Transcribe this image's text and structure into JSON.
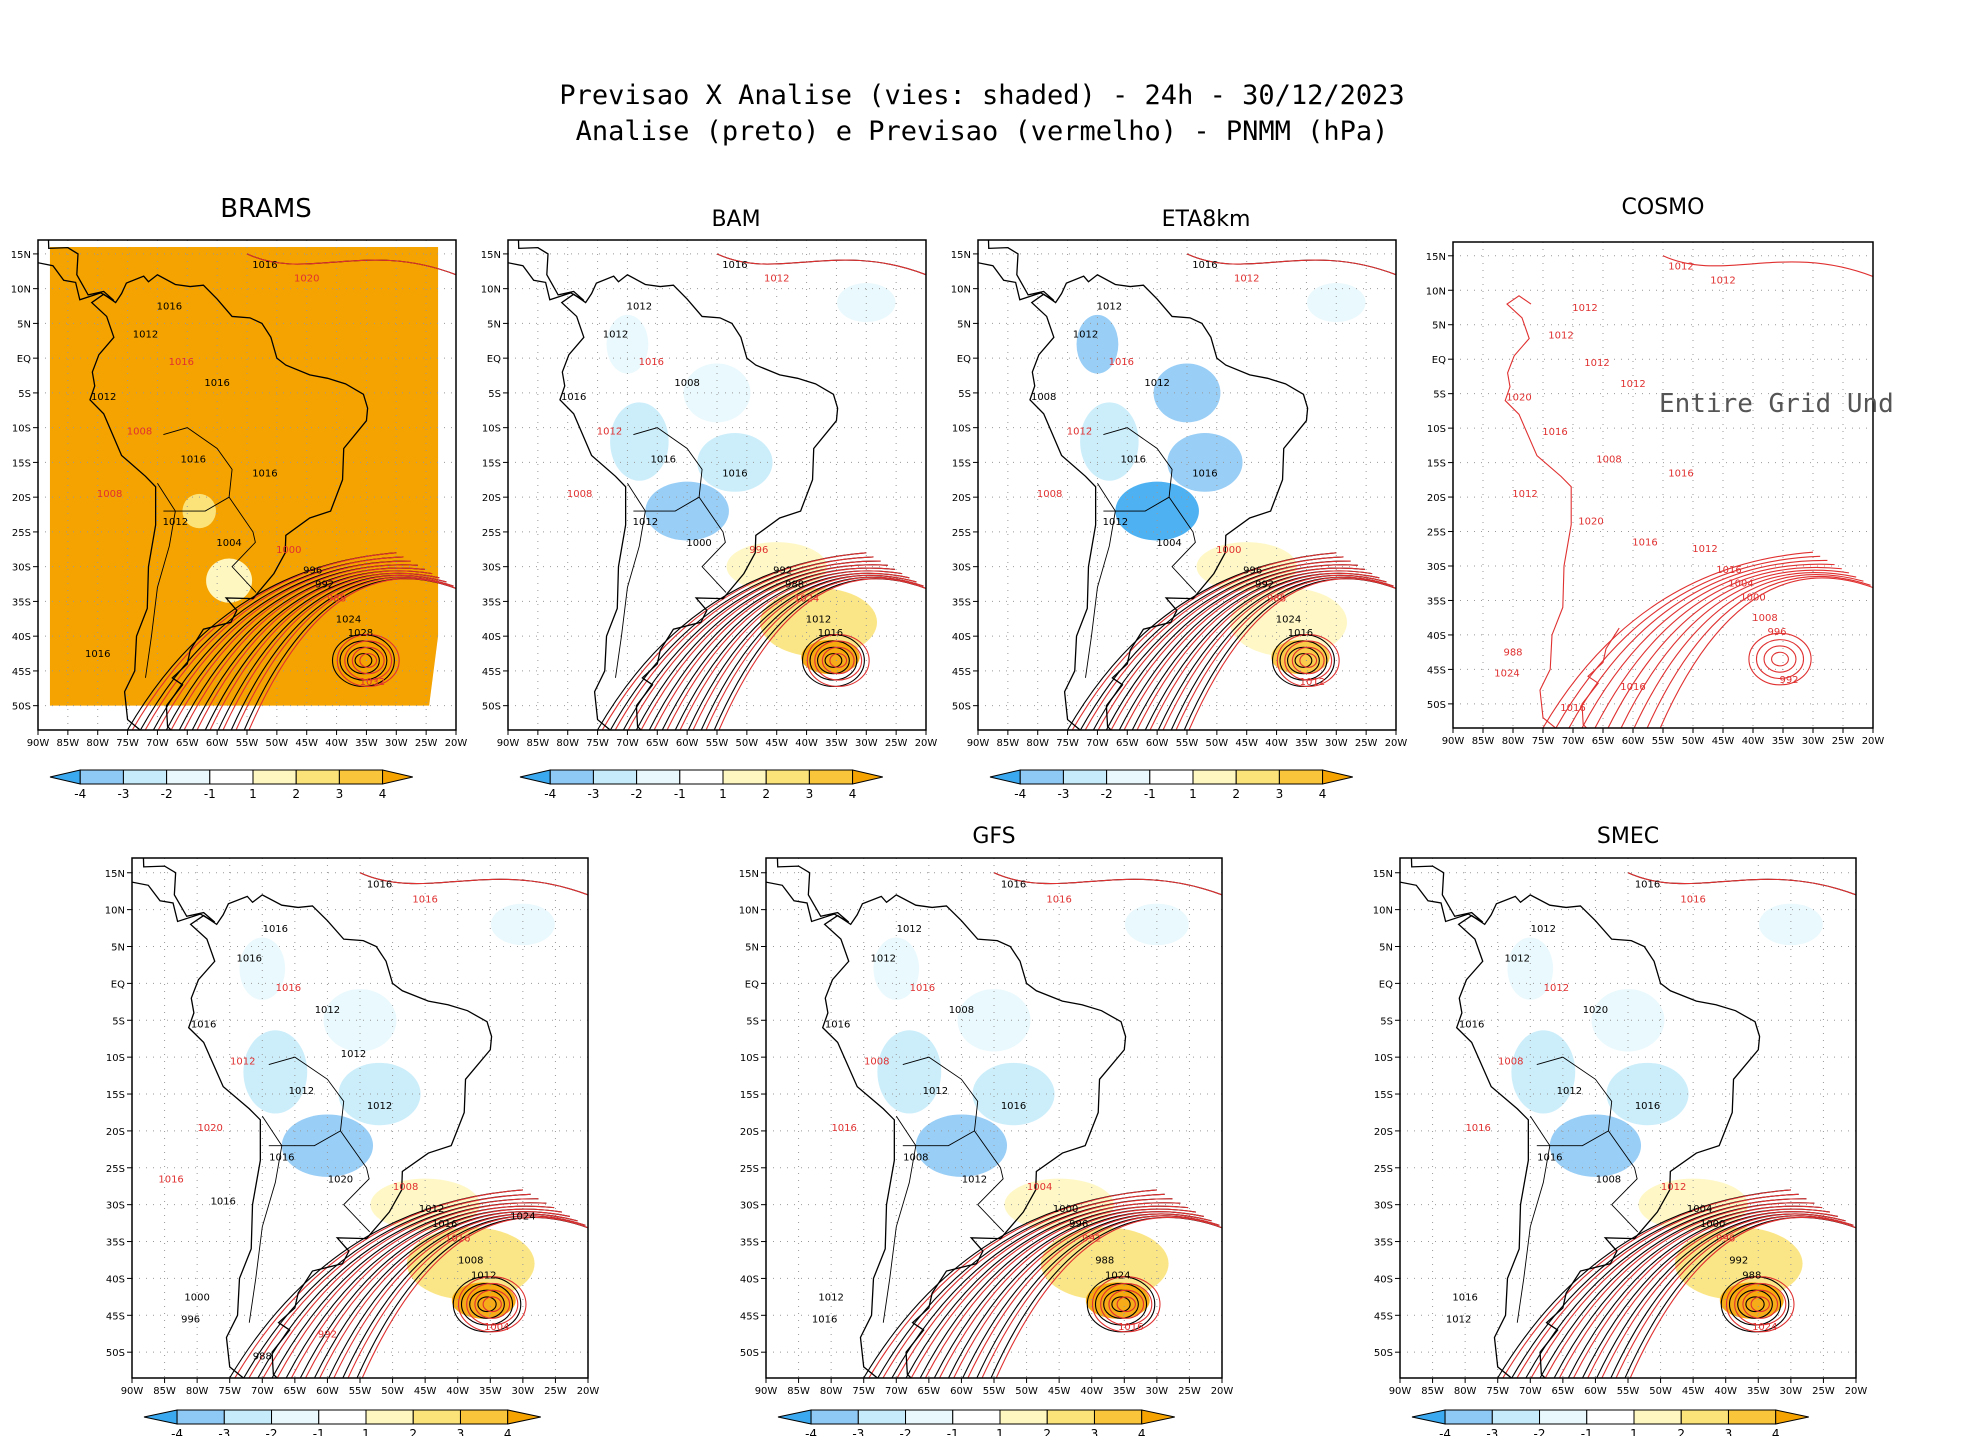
{
  "title_line1": "Previsao X Analise (vies: shaded) - 24h - 30/12/2023",
  "title_line2": "Analise (preto) e Previsao (vermelho) - PNMM (hPa)",
  "lat_labels": [
    "15N",
    "10N",
    "5N",
    "EQ",
    "5S",
    "10S",
    "15S",
    "20S",
    "25S",
    "30S",
    "35S",
    "40S",
    "45S",
    "50S"
  ],
  "lon_labels": [
    "90W",
    "85W",
    "80W",
    "75W",
    "70W",
    "65W",
    "60W",
    "55W",
    "50W",
    "45W",
    "40W",
    "35W",
    "30W",
    "25W",
    "20W"
  ],
  "colorbar_labels": [
    "-4",
    "-3",
    "-2",
    "-1",
    "1",
    "2",
    "3",
    "4"
  ],
  "colors": {
    "analysis_contour": "#000000",
    "forecast_contour": "#e03030",
    "bias_neg": [
      "#3ba9f0",
      "#8ec9f5",
      "#c6ecfb",
      "#e8f8fd"
    ],
    "bias_pos": [
      "#fff7c0",
      "#fbe37a",
      "#f9c53a",
      "#f5a300"
    ],
    "grid": "#999999"
  },
  "panels": [
    {
      "id": "brams",
      "title": "BRAMS",
      "regime": "warm",
      "missing_message": "",
      "labels": [
        "1016",
        "1020",
        "1016",
        "1012",
        "1016",
        "1016",
        "1012",
        "1008",
        "1016",
        "1016",
        "1008",
        "1012",
        "1004",
        "1000",
        "996",
        "992",
        "988",
        "1024",
        "1028",
        "1032",
        "1016"
      ]
    },
    {
      "id": "bam",
      "title": "BAM",
      "regime": "mixed",
      "missing_message": "",
      "labels": [
        "1016",
        "1012",
        "1012",
        "1012",
        "1016",
        "1008",
        "1016",
        "1012",
        "1016",
        "1016",
        "1008",
        "1012",
        "1000",
        "996",
        "992",
        "988",
        "1024",
        "1012",
        "1016"
      ]
    },
    {
      "id": "eta8km",
      "title": "ETA8km",
      "regime": "cool",
      "missing_message": "",
      "labels": [
        "1016",
        "1012",
        "1012",
        "1012",
        "1016",
        "1012",
        "1008",
        "1012",
        "1016",
        "1016",
        "1008",
        "1012",
        "1004",
        "1000",
        "996",
        "992",
        "988",
        "1024",
        "1016",
        "1012"
      ]
    },
    {
      "id": "cosmo",
      "title": "COSMO",
      "regime": "none",
      "missing_message": "Entire Grid Und",
      "labels": [
        "1012",
        "1012",
        "1012",
        "1012",
        "1012",
        "1012",
        "1020",
        "1016",
        "1008",
        "1016",
        "1012",
        "1020",
        "1016",
        "1012",
        "1016",
        "1004",
        "1000",
        "1008",
        "996",
        "992",
        "988",
        "1024",
        "1016",
        "1016"
      ]
    },
    {
      "id": "unnamed",
      "title": "",
      "regime": "mixed",
      "missing_message": "",
      "labels": [
        "1016",
        "1016",
        "1016",
        "1016",
        "1016",
        "1012",
        "1016",
        "1012",
        "1012",
        "1012",
        "1020",
        "1016",
        "1020",
        "1008",
        "1012",
        "1016",
        "1016",
        "1008",
        "1012",
        "1004",
        "1000",
        "996",
        "992",
        "988",
        "1024",
        "1016",
        "1012",
        "1016"
      ]
    },
    {
      "id": "gfs",
      "title": "GFS",
      "regime": "mixed",
      "missing_message": "",
      "labels": [
        "1016",
        "1016",
        "1012",
        "1012",
        "1016",
        "1008",
        "1016",
        "1008",
        "1012",
        "1016",
        "1016",
        "1008",
        "1012",
        "1004",
        "1000",
        "996",
        "992",
        "988",
        "1024",
        "1016",
        "1012",
        "1016"
      ]
    },
    {
      "id": "smec",
      "title": "SMEC",
      "regime": "mixed",
      "missing_message": "",
      "labels": [
        "1016",
        "1016",
        "1012",
        "1012",
        "1012",
        "1020",
        "1016",
        "1008",
        "1012",
        "1016",
        "1016",
        "1016",
        "1008",
        "1012",
        "1004",
        "1000",
        "996",
        "992",
        "988",
        "1024",
        "1016",
        "1012"
      ]
    }
  ]
}
